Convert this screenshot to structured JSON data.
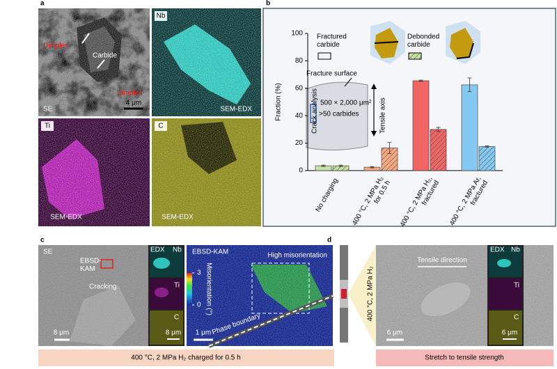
{
  "panel_labels": [
    "a",
    "b",
    "c",
    "d"
  ],
  "panel_a": {
    "se_image": {
      "label": "SE",
      "annotations": [
        "Dimples",
        "Carbide",
        "Dimples"
      ],
      "scale_bar": "4 μm"
    },
    "nb_map": {
      "element": "Nb",
      "caption": "SEM-EDX"
    },
    "ti_map": {
      "element": "Ti",
      "caption": "SEM-EDX"
    },
    "c_map": {
      "element": "C",
      "caption": "SEM-EDX"
    }
  },
  "chart_data": {
    "type": "bar",
    "ylabel": "Fraction (%)",
    "categories": [
      "No charging",
      "400 °C, 2 MPa H₂\nfor 0.5 h",
      "400 °C, 2 MPa H₂,\nfractured",
      "400 °C, 2 MPa Ar,\nfractured"
    ],
    "colors": [
      "#c6e2a4",
      "#f6a981",
      "#f16565",
      "#84c9f1"
    ],
    "series": [
      {
        "name": "Fractured\ncarbide",
        "pattern": "solid",
        "values": [
          3.5,
          2.5,
          65.5,
          62.5
        ],
        "errors": [
          0.5,
          0.5,
          0.5,
          5
        ]
      },
      {
        "name": "Debonded\ncarbide",
        "pattern": "hatched",
        "values": [
          3.5,
          16.5,
          30,
          17.5
        ],
        "errors": [
          0.5,
          4,
          1.5,
          0.5
        ]
      }
    ],
    "ylim": [
      0,
      100
    ],
    "yticks": [
      0,
      20,
      40,
      60,
      80,
      100
    ],
    "annotations": [
      "Fracture surface",
      "Crack analysis",
      "500 × 2,000 μm²",
      ">50 carbides",
      "Tensile axis"
    ]
  },
  "panel_c": {
    "se_image": {
      "label": "SE",
      "annotations": [
        "EBSD-\nKAM",
        "Cracking"
      ],
      "scale_bar": "8 μm"
    },
    "edx": {
      "title": "EDX",
      "elements": [
        "Nb",
        "Ti",
        "C"
      ],
      "scale_bar": "8 μm"
    },
    "kam_image": {
      "label": "EBSD-KAM",
      "annotations": [
        "High misorientation",
        "Phase boundary"
      ],
      "scale_bar": "1 μm",
      "colorbar": {
        "label": "Misorientation (°)",
        "ticks": [
          0,
          3
        ]
      }
    },
    "caption": "400 °C, 2 MPa H₂ charged for 0.5 h"
  },
  "panel_d": {
    "condition": "400 °C, 2 MPa H₂",
    "se_image": {
      "annotations": [
        "Tensile direction"
      ],
      "scale_bar": "6 μm"
    },
    "edx": {
      "title": "EDX",
      "elements": [
        "Nb",
        "Ti",
        "C"
      ],
      "scale_bar": "6 μm"
    },
    "caption": "Stretch to tensile strength"
  }
}
